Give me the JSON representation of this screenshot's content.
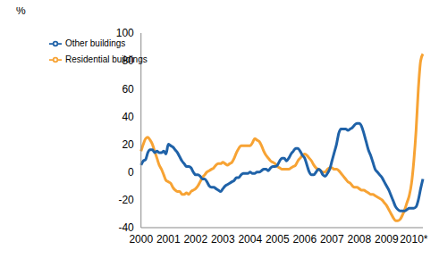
{
  "chart_data": {
    "type": "line",
    "y_label": "%",
    "categories": [
      "2000",
      null,
      null,
      null,
      null,
      null,
      null,
      null,
      null,
      null,
      null,
      null,
      "2001",
      null,
      null,
      null,
      null,
      null,
      null,
      null,
      null,
      null,
      null,
      null,
      "2002",
      null,
      null,
      null,
      null,
      null,
      null,
      null,
      null,
      null,
      null,
      null,
      "2003",
      null,
      null,
      null,
      null,
      null,
      null,
      null,
      null,
      null,
      null,
      null,
      "2004",
      null,
      null,
      null,
      null,
      null,
      null,
      null,
      null,
      null,
      null,
      null,
      "2005",
      null,
      null,
      null,
      null,
      null,
      null,
      null,
      null,
      null,
      null,
      null,
      "2006",
      null,
      null,
      null,
      null,
      null,
      null,
      null,
      null,
      null,
      null,
      null,
      "2007",
      null,
      null,
      null,
      null,
      null,
      null,
      null,
      null,
      null,
      null,
      null,
      "2008",
      null,
      null,
      null,
      null,
      null,
      null,
      null,
      null,
      null,
      null,
      null,
      "2009",
      null,
      null,
      null,
      null,
      null,
      null,
      null,
      null,
      null,
      null,
      null,
      "2010*",
      null,
      null,
      null,
      null
    ],
    "series": [
      {
        "name": "Residential buildings",
        "color": "#f7a334",
        "values": [
          15,
          20,
          24,
          25,
          23,
          20,
          15,
          10,
          5,
          2,
          -2,
          -6,
          -7,
          -8,
          -11,
          -13,
          -14,
          -14,
          -16,
          -16,
          -15,
          -16,
          -14,
          -13,
          -12,
          -10,
          -7,
          -4,
          -2,
          0,
          1,
          2,
          3,
          5,
          6,
          6,
          7,
          6,
          5,
          6,
          7,
          10,
          14,
          17,
          19,
          19,
          19,
          19,
          19,
          21,
          24,
          23,
          22,
          19,
          15,
          12,
          10,
          8,
          7,
          6,
          4,
          3,
          2,
          2,
          2,
          2,
          3,
          4,
          5,
          8,
          10,
          12,
          13,
          12,
          10,
          8,
          5,
          3,
          2,
          1,
          0,
          0,
          2,
          3,
          3,
          2,
          2,
          1,
          -1,
          -3,
          -5,
          -7,
          -8,
          -10,
          -11,
          -11,
          -12,
          -13,
          -13,
          -14,
          -15,
          -16,
          -16,
          -17,
          -18,
          -19,
          -20,
          -22,
          -24,
          -27,
          -30,
          -33,
          -35,
          -35,
          -34,
          -31,
          -27,
          -22,
          -17,
          -8,
          8,
          30,
          60,
          80,
          85
        ]
      },
      {
        "name": "Other buildings",
        "color": "#1f62a8",
        "values": [
          5,
          8,
          9,
          14,
          16,
          16,
          14,
          15,
          14,
          14,
          15,
          13,
          20,
          19,
          18,
          16,
          14,
          11,
          8,
          6,
          4,
          4,
          3,
          0,
          -2,
          -2,
          -3,
          -5,
          -5,
          -7,
          -10,
          -11,
          -11,
          -12,
          -13,
          -14,
          -12,
          -10,
          -9,
          -8,
          -7,
          -6,
          -4,
          -4,
          -2,
          -1,
          -1,
          -1,
          0,
          -1,
          -1,
          0,
          0,
          1,
          2,
          2,
          1,
          3,
          4,
          4,
          5,
          8,
          10,
          10,
          8,
          10,
          13,
          15,
          17,
          17,
          15,
          12,
          10,
          5,
          0,
          -2,
          -2,
          0,
          2,
          1,
          -2,
          -3,
          -1,
          2,
          8,
          14,
          20,
          28,
          31,
          31,
          31,
          30,
          31,
          32,
          34,
          35,
          35,
          33,
          28,
          22,
          16,
          12,
          7,
          2,
          0,
          -2,
          -4,
          -7,
          -10,
          -13,
          -17,
          -21,
          -25,
          -27,
          -28,
          -28,
          -28,
          -27,
          -26,
          -26,
          -26,
          -25,
          -20,
          -12,
          -5
        ]
      }
    ],
    "ylim": [
      -40,
      100
    ],
    "yticks": [
      -40,
      -20,
      0,
      20,
      40,
      60,
      80,
      100
    ],
    "grid": false,
    "legend": "upper left"
  }
}
